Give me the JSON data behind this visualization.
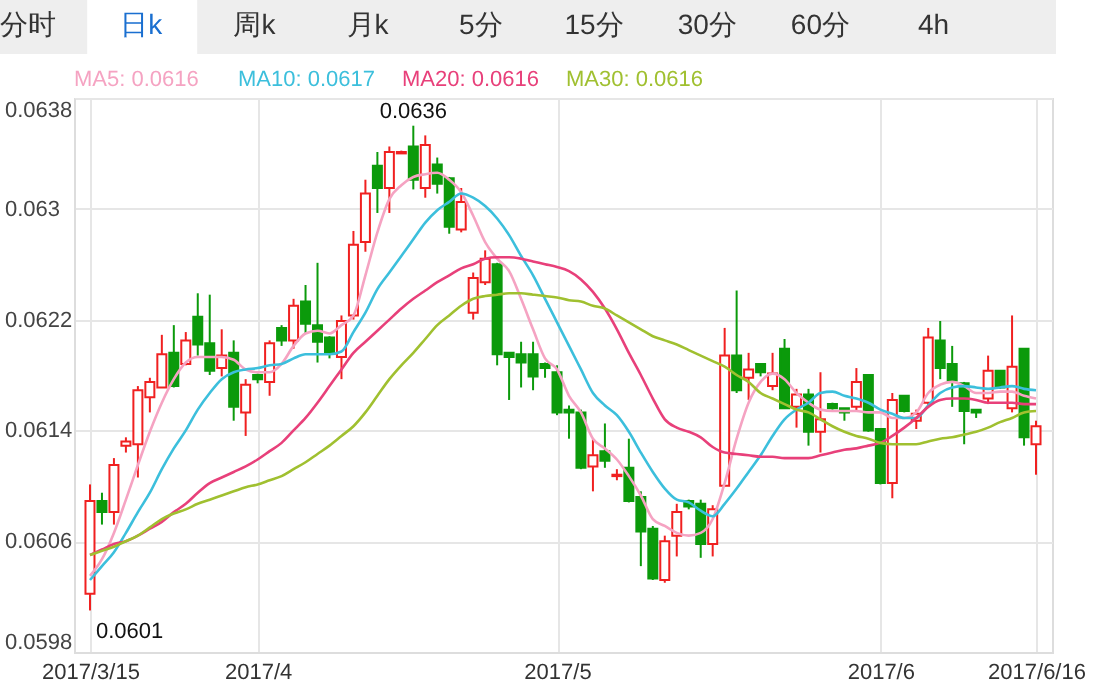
{
  "chart_data": {
    "type": "candlestick",
    "categories": [
      "2017/3/15",
      null,
      null,
      null,
      null,
      null,
      null,
      null,
      null,
      null,
      null,
      null,
      null,
      null,
      "2017/4",
      null,
      null,
      null,
      null,
      null,
      null,
      null,
      null,
      null,
      null,
      null,
      null,
      null,
      null,
      null,
      null,
      null,
      null,
      null,
      null,
      null,
      null,
      null,
      null,
      "2017/5",
      null,
      null,
      null,
      null,
      null,
      null,
      null,
      null,
      null,
      null,
      null,
      null,
      null,
      null,
      null,
      null,
      null,
      null,
      null,
      null,
      null,
      null,
      null,
      null,
      null,
      null,
      "2017/6",
      null,
      null,
      null,
      null,
      null,
      null,
      null,
      null,
      null,
      null,
      null,
      null,
      "2017/6/16"
    ],
    "ohlc": [
      [
        0.06022,
        0.06101,
        0.0601,
        0.06089
      ],
      [
        0.06089,
        0.06095,
        0.06072,
        0.06081
      ],
      [
        0.06081,
        0.0612,
        0.06072,
        0.06115
      ],
      [
        0.06129,
        0.06135,
        0.06124,
        0.06132
      ],
      [
        0.0613,
        0.06172,
        0.06106,
        0.06169
      ],
      [
        0.06164,
        0.06178,
        0.06153,
        0.06175
      ],
      [
        0.06171,
        0.06209,
        0.06171,
        0.06195
      ],
      [
        0.06196,
        0.06216,
        0.06171,
        0.06172
      ],
      [
        0.06188,
        0.06211,
        0.06187,
        0.06205
      ],
      [
        0.06222,
        0.06239,
        0.06194,
        0.06202
      ],
      [
        0.06203,
        0.06238,
        0.0618,
        0.06183
      ],
      [
        0.06185,
        0.06213,
        0.06179,
        0.06194
      ],
      [
        0.06196,
        0.06205,
        0.06147,
        0.06157
      ],
      [
        0.06153,
        0.06177,
        0.06136,
        0.06173
      ],
      [
        0.0618,
        0.06181,
        0.06174,
        0.06177
      ],
      [
        0.06175,
        0.06205,
        0.06165,
        0.06203
      ],
      [
        0.06214,
        0.06216,
        0.06201,
        0.06205
      ],
      [
        0.06205,
        0.06235,
        0.06199,
        0.0623
      ],
      [
        0.06233,
        0.06245,
        0.0621,
        0.06217
      ],
      [
        0.06216,
        0.06261,
        0.06189,
        0.06204
      ],
      [
        0.06207,
        0.06208,
        0.06192,
        0.06196
      ],
      [
        0.06193,
        0.06223,
        0.06177,
        0.06219
      ],
      [
        0.06223,
        0.06284,
        0.0622,
        0.06274
      ],
      [
        0.06276,
        0.06321,
        0.06269,
        0.06311
      ],
      [
        0.06331,
        0.06341,
        0.06297,
        0.06315
      ],
      [
        0.06315,
        0.06345,
        0.06297,
        0.06341
      ],
      [
        0.0634,
        0.06342,
        0.0634,
        0.06341
      ],
      [
        0.06345,
        0.0636,
        0.06314,
        0.06321
      ],
      [
        0.06315,
        0.06353,
        0.06308,
        0.06346
      ],
      [
        0.06332,
        0.06337,
        0.06311,
        0.06318
      ],
      [
        0.06322,
        0.06323,
        0.06282,
        0.06287
      ],
      [
        0.06285,
        0.06315,
        0.06283,
        0.06305
      ],
      [
        0.06225,
        0.06254,
        0.0622,
        0.0625
      ],
      [
        0.06247,
        0.0627,
        0.06245,
        0.06264
      ],
      [
        0.0626,
        0.06261,
        0.06187,
        0.06195
      ],
      [
        0.06196,
        0.06196,
        0.06162,
        0.06193
      ],
      [
        0.06195,
        0.06204,
        0.06171,
        0.06189
      ],
      [
        0.06195,
        0.06204,
        0.06169,
        0.06179
      ],
      [
        0.06188,
        0.06189,
        0.06178,
        0.06185
      ],
      [
        0.06182,
        0.06187,
        0.06151,
        0.06153
      ],
      [
        0.06155,
        0.06158,
        0.06134,
        0.06153
      ],
      [
        0.06153,
        0.06155,
        0.06112,
        0.06113
      ],
      [
        0.06114,
        0.06134,
        0.06096,
        0.06122
      ],
      [
        0.06125,
        0.06145,
        0.06113,
        0.06118
      ],
      [
        0.06107,
        0.06112,
        0.06104,
        0.06108
      ],
      [
        0.06113,
        0.06134,
        0.06088,
        0.06089
      ],
      [
        0.06092,
        0.06096,
        0.06042,
        0.06067
      ],
      [
        0.06069,
        0.06071,
        0.06032,
        0.06033
      ],
      [
        0.06032,
        0.06064,
        0.0603,
        0.0606
      ],
      [
        0.06064,
        0.06087,
        0.06049,
        0.06081
      ],
      [
        0.06089,
        0.0609,
        0.06083,
        0.06085
      ],
      [
        0.06087,
        0.0609,
        0.06048,
        0.06058
      ],
      [
        0.06058,
        0.06086,
        0.06049,
        0.06083
      ],
      [
        0.061,
        0.06214,
        0.061,
        0.06194
      ],
      [
        0.06194,
        0.06241,
        0.06167,
        0.06169
      ],
      [
        0.06178,
        0.06196,
        0.06162,
        0.06184
      ],
      [
        0.06188,
        0.06188,
        0.06179,
        0.06182
      ],
      [
        0.06172,
        0.06196,
        0.06169,
        0.06181
      ],
      [
        0.06199,
        0.06206,
        0.06156,
        0.06156
      ],
      [
        0.06157,
        0.0617,
        0.06142,
        0.06166
      ],
      [
        0.06166,
        0.0617,
        0.06129,
        0.06139
      ],
      [
        0.06139,
        0.06182,
        0.06124,
        0.06148
      ],
      [
        0.06159,
        0.0616,
        0.06155,
        0.06156
      ],
      [
        0.06156,
        0.06156,
        0.06147,
        0.06153
      ],
      [
        0.06157,
        0.06185,
        0.06154,
        0.06175
      ],
      [
        0.0618,
        0.0618,
        0.06139,
        0.0614
      ],
      [
        0.06141,
        0.06141,
        0.06101,
        0.06102
      ],
      [
        0.06102,
        0.06167,
        0.06091,
        0.06162
      ],
      [
        0.06165,
        0.06165,
        0.06153,
        0.06154
      ],
      [
        0.06147,
        0.06155,
        0.06141,
        0.06152
      ],
      [
        0.0616,
        0.06214,
        0.06157,
        0.06207
      ],
      [
        0.06205,
        0.06219,
        0.06177,
        0.06185
      ],
      [
        0.06188,
        0.06201,
        0.06157,
        0.06176
      ],
      [
        0.06174,
        0.06175,
        0.0613,
        0.06154
      ],
      [
        0.06155,
        0.06155,
        0.06149,
        0.06153
      ],
      [
        0.06163,
        0.06194,
        0.06159,
        0.06183
      ],
      [
        0.06183,
        0.06183,
        0.0617,
        0.06171
      ],
      [
        0.06156,
        0.06223,
        0.06153,
        0.06186
      ],
      [
        0.06199,
        0.06199,
        0.06129,
        0.06135
      ],
      [
        0.0613,
        0.06147,
        0.06108,
        0.06143
      ]
    ],
    "colors": [
      "#f02020",
      "#0b9a0b",
      "#f02020",
      "#f02020",
      "#f02020",
      "#f02020",
      "#f02020",
      "#0b9a0b",
      "#f02020",
      "#0b9a0b",
      "#0b9a0b",
      "#f02020",
      "#0b9a0b",
      "#f02020",
      "#0b9a0b",
      "#f02020",
      "#0b9a0b",
      "#f02020",
      "#0b9a0b",
      "#0b9a0b",
      "#0b9a0b",
      "#f02020",
      "#f02020",
      "#f02020",
      "#0b9a0b",
      "#f02020",
      "#f02020",
      "#0b9a0b",
      "#f02020",
      "#0b9a0b",
      "#0b9a0b",
      "#f02020",
      "#f02020",
      "#f02020",
      "#0b9a0b",
      "#0b9a0b",
      "#0b9a0b",
      "#0b9a0b",
      "#0b9a0b",
      "#0b9a0b",
      "#0b9a0b",
      "#0b9a0b",
      "#f02020",
      "#0b9a0b",
      "#f02020",
      "#0b9a0b",
      "#0b9a0b",
      "#0b9a0b",
      "#f02020",
      "#f02020",
      "#0b9a0b",
      "#0b9a0b",
      "#f02020",
      "#f02020",
      "#0b9a0b",
      "#f02020",
      "#0b9a0b",
      "#f02020",
      "#0b9a0b",
      "#f02020",
      "#0b9a0b",
      "#f02020",
      "#0b9a0b",
      "#0b9a0b",
      "#f02020",
      "#0b9a0b",
      "#0b9a0b",
      "#f02020",
      "#0b9a0b",
      "#f02020",
      "#f02020",
      "#0b9a0b",
      "#0b9a0b",
      "#0b9a0b",
      "#0b9a0b",
      "#f02020",
      "#0b9a0b",
      "#f02020",
      "#0b9a0b",
      "#f02020"
    ],
    "series": [
      {
        "name": "MA5: 0.0616",
        "type": "line",
        "color": "#f5a3c2",
        "values": [
          0.06035,
          0.06047,
          0.06066,
          0.0609,
          0.06115,
          0.06139,
          0.0616,
          0.06177,
          0.06189,
          0.06193,
          0.06193,
          0.06193,
          0.06191,
          0.06184,
          0.06182,
          0.06182,
          0.06188,
          0.06201,
          0.0621,
          0.06212,
          0.0621,
          0.06216,
          0.06223,
          0.06252,
          0.06283,
          0.06307,
          0.06317,
          0.06323,
          0.06325,
          0.06326,
          0.06321,
          0.06312,
          0.06295,
          0.06276,
          0.06264,
          0.06255,
          0.06235,
          0.06213,
          0.06192,
          0.06184,
          0.06165,
          0.06153,
          0.06134,
          0.06127,
          0.06119,
          0.06107,
          0.06093,
          0.06076,
          0.06071,
          0.06066,
          0.06064,
          0.06066,
          0.06076,
          0.06102,
          0.06134,
          0.0616,
          0.06175,
          0.06181,
          0.06177,
          0.06167,
          0.0616,
          0.06155,
          0.06154,
          0.06154,
          0.06154,
          0.06153,
          0.06153,
          0.06149,
          0.06149,
          0.06153,
          0.06167,
          0.06173,
          0.06175,
          0.06172,
          0.06167,
          0.06167,
          0.06168,
          0.06168,
          0.06165,
          0.06163
        ]
      },
      {
        "name": "MA10: 0.0617",
        "type": "line",
        "color": "#3cbfdc",
        "values": [
          0.06032,
          0.06042,
          0.06052,
          0.06066,
          0.06081,
          0.06095,
          0.06112,
          0.06127,
          0.0614,
          0.06155,
          0.06167,
          0.06177,
          0.06182,
          0.06184,
          0.06185,
          0.06187,
          0.06188,
          0.06192,
          0.06195,
          0.06195,
          0.06195,
          0.06197,
          0.06211,
          0.06225,
          0.06242,
          0.06254,
          0.06266,
          0.06278,
          0.0629,
          0.06299,
          0.06305,
          0.06311,
          0.06308,
          0.06302,
          0.06293,
          0.06281,
          0.06266,
          0.06252,
          0.06235,
          0.06218,
          0.06201,
          0.06184,
          0.06167,
          0.06158,
          0.06151,
          0.06139,
          0.06124,
          0.0611,
          0.06098,
          0.0609,
          0.06088,
          0.06082,
          0.06078,
          0.06087,
          0.06098,
          0.0611,
          0.06122,
          0.06136,
          0.06148,
          0.06155,
          0.0616,
          0.06167,
          0.06168,
          0.06165,
          0.06163,
          0.0616,
          0.06155,
          0.06152,
          0.06149,
          0.06149,
          0.06158,
          0.06167,
          0.06171,
          0.06172,
          0.06171,
          0.0617,
          0.06171,
          0.06172,
          0.0617,
          0.06169
        ]
      },
      {
        "name": "MA20: 0.0616",
        "type": "line",
        "color": "#e8407a",
        "values": [
          0.0605,
          0.06054,
          0.06058,
          0.0606,
          0.06064,
          0.06069,
          0.06074,
          0.06081,
          0.06087,
          0.06095,
          0.06102,
          0.06106,
          0.0611,
          0.06114,
          0.06119,
          0.06125,
          0.06131,
          0.0614,
          0.06149,
          0.0616,
          0.06172,
          0.06184,
          0.06196,
          0.06204,
          0.06212,
          0.0622,
          0.06228,
          0.06235,
          0.06241,
          0.06247,
          0.06252,
          0.06257,
          0.0626,
          0.06264,
          0.06265,
          0.06265,
          0.06264,
          0.06262,
          0.0626,
          0.06258,
          0.06255,
          0.06249,
          0.0624,
          0.06228,
          0.06213,
          0.06196,
          0.0618,
          0.06163,
          0.06148,
          0.06142,
          0.06139,
          0.06135,
          0.06128,
          0.06124,
          0.06123,
          0.06122,
          0.06121,
          0.06121,
          0.0612,
          0.0612,
          0.0612,
          0.06122,
          0.06124,
          0.06126,
          0.06127,
          0.06129,
          0.06131,
          0.06136,
          0.06142,
          0.06149,
          0.06157,
          0.06162,
          0.06163,
          0.06163,
          0.06162,
          0.0616,
          0.0616,
          0.0616,
          0.06159,
          0.06159
        ]
      },
      {
        "name": "MA30: 0.0616",
        "type": "line",
        "color": "#a0c030",
        "values": [
          0.0605,
          0.06053,
          0.06056,
          0.0606,
          0.06064,
          0.0607,
          0.06076,
          0.0608,
          0.06083,
          0.06087,
          0.0609,
          0.06093,
          0.06096,
          0.06099,
          0.06101,
          0.06104,
          0.06107,
          0.06112,
          0.06117,
          0.06123,
          0.06129,
          0.06136,
          0.06143,
          0.06153,
          0.06165,
          0.06177,
          0.06187,
          0.06196,
          0.06206,
          0.06216,
          0.06223,
          0.0623,
          0.06235,
          0.06237,
          0.06238,
          0.06239,
          0.06239,
          0.06238,
          0.06237,
          0.06236,
          0.06234,
          0.06233,
          0.0623,
          0.06228,
          0.06223,
          0.06218,
          0.06213,
          0.06208,
          0.06205,
          0.06202,
          0.06198,
          0.06194,
          0.0619,
          0.06186,
          0.0618,
          0.06175,
          0.06167,
          0.06163,
          0.06159,
          0.06155,
          0.06153,
          0.06148,
          0.06143,
          0.06139,
          0.06136,
          0.06134,
          0.06131,
          0.0613,
          0.0613,
          0.0613,
          0.06132,
          0.06134,
          0.06135,
          0.06137,
          0.06139,
          0.06142,
          0.06146,
          0.06149,
          0.06153,
          0.06154
        ]
      }
    ],
    "ylim": [
      0.0598,
      0.0638
    ],
    "yticks": [
      0.0598,
      0.0606,
      0.0614,
      0.0622,
      0.063,
      0.0638
    ],
    "grid": true,
    "legend": "top left",
    "annotations": [
      "分时",
      "日k",
      "周k",
      "月k",
      "5分",
      "15分",
      "30分",
      "60分",
      "4h",
      {
        "text": "0.0636",
        "y": 0.0636
      },
      {
        "text": "0.0601",
        "x": "2017/3/15",
        "y": 0.0601
      }
    ]
  }
}
